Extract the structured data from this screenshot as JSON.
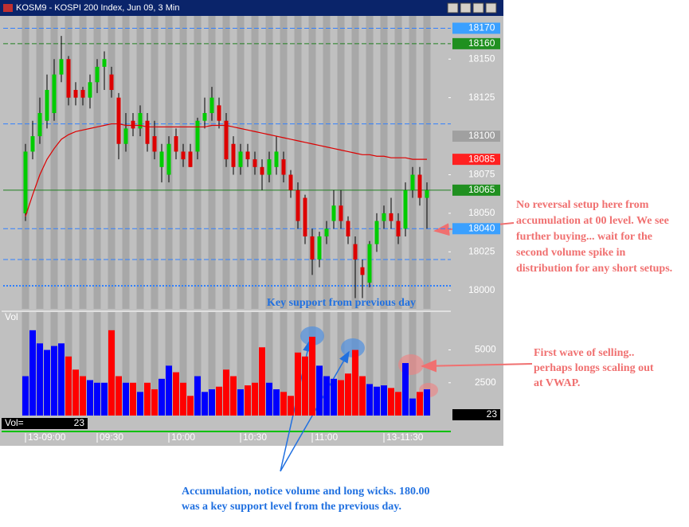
{
  "window_title": "KOSM9 - KOSPI 200 Index, Jun 09, 3 Min",
  "chart_data": {
    "type": "candlestick",
    "up_color": "#00cc00",
    "down_color": "#dd0000",
    "volume_up_color": "#0000ff",
    "volume_down_color": "#ff0000",
    "vwap_color": "#dd0000",
    "ylim": [
      17988,
      18178
    ],
    "yticks": [
      18150,
      18125,
      18075,
      18050,
      18025,
      18000
    ],
    "xticks": [
      {
        "value": 0,
        "label": "13-09:00"
      },
      {
        "value": 10,
        "label": "09:30"
      },
      {
        "value": 20,
        "label": "10:00"
      },
      {
        "value": 30,
        "label": "10:30"
      },
      {
        "value": 40,
        "label": "11:00"
      },
      {
        "value": 50,
        "label": "13-11:30"
      }
    ],
    "candles": [
      {
        "open": 18050,
        "high": 18095,
        "low": 18045,
        "close": 18090
      },
      {
        "open": 18090,
        "high": 18110,
        "low": 18085,
        "close": 18100
      },
      {
        "open": 18100,
        "high": 18125,
        "low": 18095,
        "close": 18115
      },
      {
        "open": 18110,
        "high": 18140,
        "low": 18105,
        "close": 18130
      },
      {
        "open": 18115,
        "high": 18150,
        "low": 18110,
        "close": 18140
      },
      {
        "open": 18140,
        "high": 18165,
        "low": 18135,
        "close": 18150
      },
      {
        "open": 18150,
        "high": 18152,
        "low": 18120,
        "close": 18125
      },
      {
        "open": 18130,
        "high": 18135,
        "low": 18120,
        "close": 18125
      },
      {
        "open": 18130,
        "high": 18132,
        "low": 18120,
        "close": 18125
      },
      {
        "open": 18125,
        "high": 18140,
        "low": 18118,
        "close": 18135
      },
      {
        "open": 18135,
        "high": 18150,
        "low": 18128,
        "close": 18145
      },
      {
        "open": 18145,
        "high": 18155,
        "low": 18130,
        "close": 18150
      },
      {
        "open": 18140,
        "high": 18145,
        "low": 18125,
        "close": 18130
      },
      {
        "open": 18125,
        "high": 18128,
        "low": 18085,
        "close": 18095
      },
      {
        "open": 18095,
        "high": 18115,
        "low": 18090,
        "close": 18105
      },
      {
        "open": 18110,
        "high": 18115,
        "low": 18100,
        "close": 18105
      },
      {
        "open": 18105,
        "high": 18120,
        "low": 18100,
        "close": 18115
      },
      {
        "open": 18110,
        "high": 18115,
        "low": 18090,
        "close": 18095
      },
      {
        "open": 18100,
        "high": 18110,
        "low": 18085,
        "close": 18090
      },
      {
        "open": 18080,
        "high": 18095,
        "low": 18070,
        "close": 18090
      },
      {
        "open": 18075,
        "high": 18100,
        "low": 18070,
        "close": 18095
      },
      {
        "open": 18100,
        "high": 18105,
        "low": 18085,
        "close": 18090
      },
      {
        "open": 18090,
        "high": 18095,
        "low": 18080,
        "close": 18085
      },
      {
        "open": 18090,
        "high": 18095,
        "low": 18080,
        "close": 18080
      },
      {
        "open": 18090,
        "high": 18112,
        "low": 18085,
        "close": 18110
      },
      {
        "open": 18110,
        "high": 18125,
        "low": 18105,
        "close": 18115
      },
      {
        "open": 18115,
        "high": 18132,
        "low": 18110,
        "close": 18125
      },
      {
        "open": 18120,
        "high": 18125,
        "low": 18105,
        "close": 18110
      },
      {
        "open": 18110,
        "high": 18115,
        "low": 18080,
        "close": 18085
      },
      {
        "open": 18095,
        "high": 18100,
        "low": 18075,
        "close": 18080
      },
      {
        "open": 18080,
        "high": 18095,
        "low": 18075,
        "close": 18090
      },
      {
        "open": 18090,
        "high": 18095,
        "low": 18080,
        "close": 18085
      },
      {
        "open": 18085,
        "high": 18090,
        "low": 18075,
        "close": 18080
      },
      {
        "open": 18080,
        "high": 18085,
        "low": 18065,
        "close": 18075
      },
      {
        "open": 18075,
        "high": 18090,
        "low": 18070,
        "close": 18085
      },
      {
        "open": 18080,
        "high": 18100,
        "low": 18075,
        "close": 18090
      },
      {
        "open": 18085,
        "high": 18090,
        "low": 18070,
        "close": 18075
      },
      {
        "open": 18075,
        "high": 18078,
        "low": 18060,
        "close": 18065
      },
      {
        "open": 18065,
        "high": 18070,
        "low": 18040,
        "close": 18045
      },
      {
        "open": 18060,
        "high": 18062,
        "low": 18030,
        "close": 18035
      },
      {
        "open": 18035,
        "high": 18040,
        "low": 18010,
        "close": 18020
      },
      {
        "open": 18020,
        "high": 18038,
        "low": 18015,
        "close": 18035
      },
      {
        "open": 18035,
        "high": 18045,
        "low": 18030,
        "close": 18040
      },
      {
        "open": 18045,
        "high": 18065,
        "low": 18040,
        "close": 18055
      },
      {
        "open": 18055,
        "high": 18065,
        "low": 18040,
        "close": 18045
      },
      {
        "open": 18045,
        "high": 18048,
        "low": 18030,
        "close": 18035
      },
      {
        "open": 18030,
        "high": 18035,
        "low": 17995,
        "close": 18020
      },
      {
        "open": 18015,
        "high": 18020,
        "low": 17995,
        "close": 18010
      },
      {
        "open": 18005,
        "high": 18032,
        "low": 18002,
        "close": 18030
      },
      {
        "open": 18030,
        "high": 18050,
        "low": 18025,
        "close": 18045
      },
      {
        "open": 18045,
        "high": 18055,
        "low": 18040,
        "close": 18050
      },
      {
        "open": 18050,
        "high": 18060,
        "low": 18040,
        "close": 18045
      },
      {
        "open": 18045,
        "high": 18050,
        "low": 18030,
        "close": 18035
      },
      {
        "open": 18040,
        "high": 18070,
        "low": 18035,
        "close": 18065
      },
      {
        "open": 18065,
        "high": 18080,
        "low": 18060,
        "close": 18075
      },
      {
        "open": 18075,
        "high": 18080,
        "low": 18055,
        "close": 18060
      },
      {
        "open": 18060,
        "high": 18070,
        "low": 18040,
        "close": 18065
      }
    ],
    "vwap": [
      18048,
      18062,
      18075,
      18085,
      18092,
      18098,
      18101,
      18103,
      18104,
      18105,
      18106,
      18107,
      18108,
      18108,
      18107,
      18107,
      18107,
      18106,
      18106,
      18106,
      18106,
      18106,
      18106,
      18106,
      18106,
      18106,
      18107,
      18107,
      18107,
      18106,
      18105,
      18104,
      18103,
      18102,
      18101,
      18100,
      18099,
      18098,
      18097,
      18096,
      18095,
      18094,
      18093,
      18092,
      18091,
      18090,
      18089,
      18088,
      18088,
      18087,
      18087,
      18086,
      18086,
      18086,
      18085,
      18085,
      18085
    ],
    "levels": [
      {
        "value": 18170,
        "color": "#3080ff",
        "style": "dashed"
      },
      {
        "value": 18160,
        "color": "#208020",
        "style": "dashed"
      },
      {
        "value": 18108,
        "color": "#3080ff",
        "style": "dashed"
      },
      {
        "value": 18065,
        "color": "#208020",
        "style": "solid"
      },
      {
        "value": 18040,
        "color": "#3080ff",
        "style": "dashed"
      },
      {
        "value": 18020,
        "color": "#3080ff",
        "style": "dashed"
      },
      {
        "value": 18003,
        "color": "#3080ff",
        "style": "dotted"
      }
    ],
    "price_markers": [
      {
        "value": 18170,
        "color": "#3aa0ff"
      },
      {
        "value": 18160,
        "color": "#209020"
      },
      {
        "value": 18100,
        "color": "#a0a0a0"
      },
      {
        "value": 18085,
        "color": "#ff2020"
      },
      {
        "value": 18065,
        "color": "#209020"
      },
      {
        "value": 18040,
        "color": "#3aa0ff"
      }
    ],
    "support_label": "Key support from previous day",
    "volume_label": "Vol",
    "volume_readout_label": "Vol=",
    "volume_readout": 23,
    "volume": [
      3000,
      6500,
      5500,
      5000,
      5300,
      5500,
      4500,
      3500,
      3000,
      2700,
      2500,
      2500,
      6500,
      3000,
      2500,
      2500,
      1800,
      2500,
      2000,
      2800,
      3800,
      3300,
      2500,
      1500,
      3000,
      1800,
      2000,
      2200,
      3500,
      3000,
      2000,
      2300,
      2500,
      5200,
      2500,
      2000,
      1800,
      1500,
      4800,
      4500,
      6000,
      3800,
      3000,
      2800,
      2700,
      3200,
      5000,
      3000,
      2400,
      2200,
      2300,
      2100,
      1800,
      4000,
      1300,
      1800,
      2000
    ],
    "volume_ylim": [
      0,
      7400
    ],
    "volume_yticks": [
      5000,
      2500
    ]
  },
  "annotations": [
    {
      "color": "#f07070",
      "lines": [
        "No reversal setup here from",
        "accumulation at 00 level. We see",
        "further buying... wait for the",
        "second volume spike in",
        "distribution for any short setups."
      ]
    },
    {
      "color": "#f07070",
      "lines": [
        "First wave of selling..",
        "perhaps longs scaling out",
        "at VWAP."
      ]
    },
    {
      "color": "#2070e0",
      "lines": [
        "Accumulation, notice volume and long wicks. 180.00",
        "was a key support level from the previous day."
      ]
    }
  ]
}
